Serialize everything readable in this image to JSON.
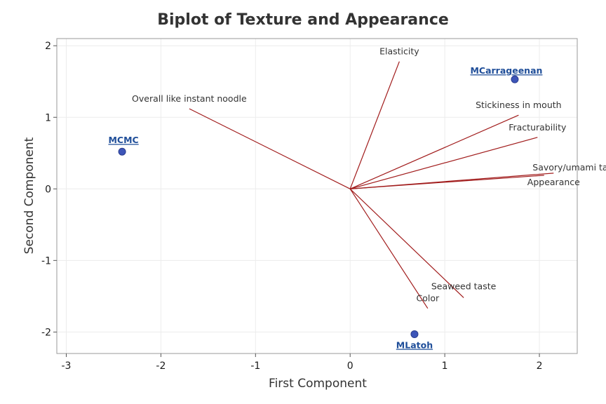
{
  "chart_data": {
    "type": "scatter",
    "subtype": "biplot",
    "title": "Biplot of Texture and Appearance",
    "xlabel": "First Component",
    "ylabel": "Second Component",
    "xlim": [
      -3.1,
      2.4
    ],
    "ylim": [
      -2.3,
      2.1
    ],
    "xticks": [
      -3,
      -2,
      -1,
      0,
      1,
      2
    ],
    "yticks": [
      -2,
      -1,
      0,
      1,
      2
    ],
    "grid": true,
    "colors": {
      "loading_line": "#a11c1c",
      "score_point": "#3d55b8",
      "score_label": "#1f4e99",
      "grid": "#ececec",
      "frame": "#9a9a9a"
    },
    "loadings": [
      {
        "name": "Elasticity",
        "x": 0.52,
        "y": 1.78
      },
      {
        "name": "Overall like instant noodle",
        "x": -1.7,
        "y": 1.12
      },
      {
        "name": "Stickiness in mouth",
        "x": 1.78,
        "y": 1.03
      },
      {
        "name": "Fracturability",
        "x": 1.98,
        "y": 0.72
      },
      {
        "name": "Savory/umami taste",
        "x": 2.15,
        "y": 0.22
      },
      {
        "name": "Appearance",
        "x": 2.05,
        "y": 0.19
      },
      {
        "name": "Seaweed taste",
        "x": 1.2,
        "y": -1.52
      },
      {
        "name": "Color",
        "x": 0.82,
        "y": -1.67
      }
    ],
    "scores": [
      {
        "name": "MCarrageenan",
        "x": 1.74,
        "y": 1.53
      },
      {
        "name": "MCMC",
        "x": -2.41,
        "y": 0.52
      },
      {
        "name": "MLatoh",
        "x": 0.68,
        "y": -2.03
      }
    ]
  }
}
